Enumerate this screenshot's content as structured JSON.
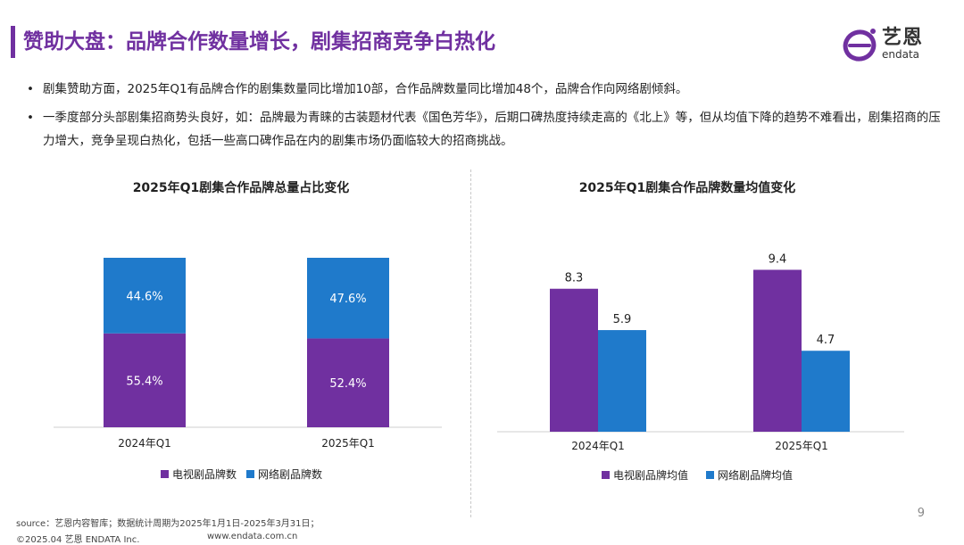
{
  "title": "赞助大盘：品牌合作数量增长，剧集招商竞争白热化",
  "logo": {
    "cn": "艺恩",
    "en": "endata",
    "icon": "endata-e-logo"
  },
  "bullets": [
    "剧集赞助方面，2025年Q1有品牌合作的剧集数量同比增加10部，合作品牌数量同比增加48个，品牌合作向网络剧倾斜。",
    "一季度部分头部剧集招商势头良好，如：品牌最为青睐的古装题材代表《国色芳华》，后期口碑热度持续走高的《北上》等，但从均值下降的趋势不难看出，剧集招商的压力增大，竞争呈现白热化，包括一些高口碑作品在内的剧集市场仍面临较大的招商挑战。"
  ],
  "bullet_symbol": "•",
  "chart_data": [
    {
      "type": "bar",
      "stacked": true,
      "percent": true,
      "title": "2025年Q1剧集合作品牌总量占比变化",
      "categories": [
        "2024年Q1",
        "2025年Q1"
      ],
      "series": [
        {
          "name": "电视剧品牌数",
          "values": [
            55.4,
            52.4
          ],
          "labels": [
            "55.4%",
            "52.4%"
          ],
          "color": "#7030A0"
        },
        {
          "name": "网络剧品牌数",
          "values": [
            44.6,
            47.6
          ],
          "labels": [
            "44.6%",
            "47.6%"
          ],
          "color": "#1F7ACB"
        }
      ],
      "ylim": [
        0,
        100
      ],
      "legend": "bottom",
      "grid": false
    },
    {
      "type": "bar",
      "stacked": false,
      "title": "2025年Q1剧集合作品牌数量均值变化",
      "categories": [
        "2024年Q1",
        "2025年Q1"
      ],
      "series": [
        {
          "name": "电视剧品牌均值",
          "values": [
            8.3,
            9.4
          ],
          "labels": [
            "8.3",
            "9.4"
          ],
          "color": "#7030A0"
        },
        {
          "name": "网络剧品牌均值",
          "values": [
            5.9,
            4.7
          ],
          "labels": [
            "5.9",
            "4.7"
          ],
          "color": "#1F7ACB"
        }
      ],
      "ylim": [
        0,
        11.6
      ],
      "legend": "bottom",
      "grid": false
    }
  ],
  "footer": {
    "source": "source：艺恩内容智库；数据统计周期为2025年1月1日-2025年3月31日；",
    "copyright": "©2025.04 艺恩 ENDATA Inc.",
    "url": "www.endata.com.cn"
  },
  "page_number": "9",
  "colors": {
    "accent": "#7030A0",
    "blue": "#1F7ACB"
  }
}
